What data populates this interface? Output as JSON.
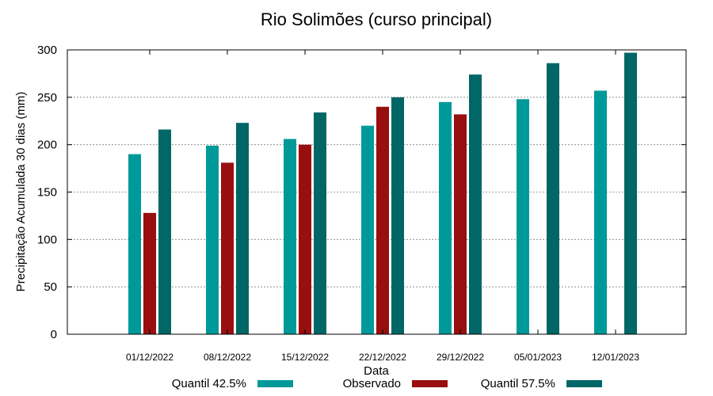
{
  "chart_data": {
    "type": "bar",
    "title": "Rio Solimões (curso principal)",
    "xlabel": "Data",
    "ylabel": "Precipitação Acumulada 30 dias (mm)",
    "ylim": [
      0,
      300
    ],
    "yticks": [
      "0",
      "50",
      "100",
      "150",
      "200",
      "250",
      "300"
    ],
    "grid": true,
    "legend_position": "bottom",
    "categories": [
      "01/12/2022",
      "08/12/2022",
      "15/12/2022",
      "22/12/2022",
      "29/12/2022",
      "05/01/2023",
      "12/01/2023"
    ],
    "series": [
      {
        "name": "Quantil 42.5%",
        "color": "#009999",
        "values": [
          190,
          199,
          206,
          220,
          245,
          248,
          257
        ]
      },
      {
        "name": "Observado",
        "color": "#990f0f",
        "values": [
          128,
          181,
          200,
          240,
          232,
          null,
          null
        ]
      },
      {
        "name": "Quantil 57.5%",
        "color": "#006666",
        "values": [
          216,
          223,
          234,
          250,
          274,
          286,
          297
        ]
      }
    ]
  }
}
